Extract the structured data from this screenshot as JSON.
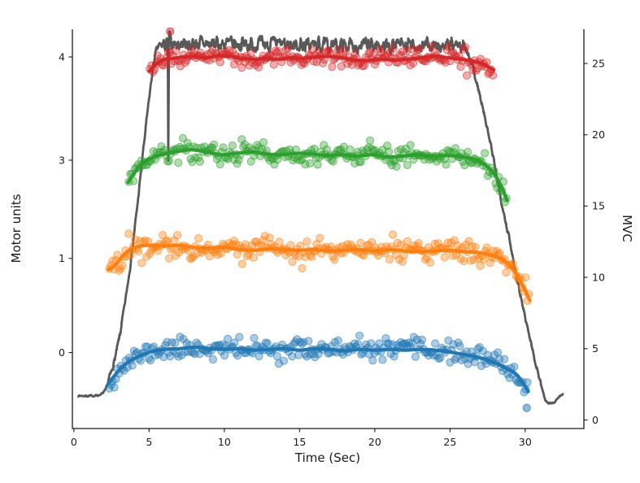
{
  "chart_data": {
    "type": "scatter",
    "title": "",
    "xlabel": "Time (Sec)",
    "ylabel_left": "Motor units",
    "ylabel_right": "MVC",
    "xlim": [
      -0.1,
      33.9
    ],
    "ylim_mvc": [
      -0.6,
      27.4
    ],
    "grid": false,
    "legend": "none",
    "x_ticks": {
      "positions": [
        0,
        5,
        10,
        15,
        20,
        25,
        30
      ],
      "labels": [
        "0",
        "5",
        "10",
        "15",
        "20",
        "25",
        "30"
      ]
    },
    "left_ticks": {
      "positions": [
        4.73,
        11.33,
        18.22,
        25.46
      ],
      "labels": [
        "0",
        "1",
        "3",
        "4"
      ]
    },
    "right_ticks": {
      "positions": [
        0,
        5,
        10,
        15,
        20,
        25
      ],
      "labels": [
        "0",
        "5",
        "10",
        "15",
        "20",
        "25"
      ]
    },
    "mvc_trace": {
      "name": "force-trace",
      "color": "#595959",
      "linewidth": 2.8,
      "sample_step": 0.025,
      "noise": {
        "seed": 7,
        "plateau_t": [
          5.8,
          26.0
        ],
        "plateau_amp": 0.42,
        "slope_amp": 0.18,
        "base_amp": 0.05
      },
      "keypoints": [
        [
          0.3,
          1.7
        ],
        [
          1.0,
          1.68
        ],
        [
          1.6,
          1.72
        ],
        [
          1.9,
          1.85
        ],
        [
          2.1,
          2.1
        ],
        [
          2.25,
          2.6
        ],
        [
          2.5,
          3.4
        ],
        [
          2.8,
          4.6
        ],
        [
          3.1,
          6.2
        ],
        [
          3.4,
          8.2
        ],
        [
          3.7,
          10.5
        ],
        [
          4.0,
          13.0
        ],
        [
          4.3,
          15.8
        ],
        [
          4.6,
          18.8
        ],
        [
          4.9,
          21.6
        ],
        [
          5.1,
          23.4
        ],
        [
          5.3,
          25.0
        ],
        [
          5.5,
          26.0
        ],
        [
          5.7,
          26.3
        ],
        [
          6.24,
          26.3
        ],
        [
          6.28,
          16.8
        ],
        [
          6.32,
          26.9
        ],
        [
          6.5,
          26.4
        ],
        [
          26.0,
          26.2
        ],
        [
          26.4,
          25.2
        ],
        [
          26.8,
          23.6
        ],
        [
          27.1,
          22.2
        ],
        [
          27.4,
          20.8
        ],
        [
          27.7,
          19.3
        ],
        [
          28.0,
          17.6
        ],
        [
          28.4,
          15.5
        ],
        [
          28.8,
          13.4
        ],
        [
          29.2,
          11.3
        ],
        [
          29.6,
          9.2
        ],
        [
          30.0,
          7.2
        ],
        [
          30.4,
          5.3
        ],
        [
          30.8,
          3.5
        ],
        [
          31.1,
          2.3
        ],
        [
          31.35,
          1.35
        ],
        [
          31.6,
          1.15
        ],
        [
          31.9,
          1.2
        ],
        [
          32.2,
          1.55
        ],
        [
          32.5,
          1.8
        ]
      ]
    },
    "series": [
      {
        "name": "motor-unit-0",
        "unit_label": "0",
        "color": "#1f77b4",
        "baseline_mvc": 4.73,
        "linewidth": 4.2,
        "marker_radius": 4.6,
        "marker_alpha": 0.38,
        "scatter": {
          "count": 255,
          "sd": 0.36,
          "seed": 11
        },
        "outliers": [
          [
            30.1,
            0.85
          ]
        ],
        "line": [
          [
            2.3,
            2.55
          ],
          [
            2.7,
            3.1
          ],
          [
            3.1,
            3.6
          ],
          [
            3.6,
            4.05
          ],
          [
            4.2,
            4.4
          ],
          [
            5.0,
            4.75
          ],
          [
            6.0,
            4.95
          ],
          [
            7.0,
            5.0
          ],
          [
            8.0,
            5.1
          ],
          [
            9.0,
            5.0
          ],
          [
            10.0,
            4.95
          ],
          [
            11.0,
            5.0
          ],
          [
            12.0,
            4.9
          ],
          [
            13.0,
            4.95
          ],
          [
            14.0,
            5.0
          ],
          [
            15.0,
            4.9
          ],
          [
            16.0,
            5.0
          ],
          [
            17.0,
            4.95
          ],
          [
            18.0,
            4.85
          ],
          [
            19.0,
            4.95
          ],
          [
            20.0,
            4.9
          ],
          [
            21.0,
            4.95
          ],
          [
            22.0,
            4.9
          ],
          [
            23.0,
            4.95
          ],
          [
            24.0,
            4.9
          ],
          [
            24.8,
            4.8
          ],
          [
            25.6,
            4.65
          ],
          [
            26.4,
            4.5
          ],
          [
            27.2,
            4.3
          ],
          [
            28.0,
            4.0
          ],
          [
            28.8,
            3.6
          ],
          [
            29.5,
            3.1
          ],
          [
            30.2,
            2.0
          ]
        ]
      },
      {
        "name": "motor-unit-1",
        "unit_label": "1",
        "color": "#ff7f0e",
        "baseline_mvc": 11.33,
        "linewidth": 4.2,
        "marker_radius": 4.6,
        "marker_alpha": 0.38,
        "scatter": {
          "count": 260,
          "sd": 0.38,
          "seed": 22
        },
        "outliers": [],
        "line": [
          [
            2.3,
            10.55
          ],
          [
            2.7,
            10.8
          ],
          [
            3.1,
            11.3
          ],
          [
            3.6,
            11.85
          ],
          [
            4.2,
            12.15
          ],
          [
            5.0,
            12.25
          ],
          [
            6.0,
            12.2
          ],
          [
            7.0,
            12.25
          ],
          [
            8.0,
            12.1
          ],
          [
            9.0,
            12.05
          ],
          [
            10.0,
            12.1
          ],
          [
            11.0,
            11.95
          ],
          [
            12.0,
            11.9
          ],
          [
            13.0,
            12.0
          ],
          [
            14.0,
            11.95
          ],
          [
            15.0,
            11.9
          ],
          [
            16.0,
            11.95
          ],
          [
            17.0,
            11.85
          ],
          [
            18.0,
            11.9
          ],
          [
            19.0,
            11.95
          ],
          [
            20.0,
            11.85
          ],
          [
            21.0,
            11.95
          ],
          [
            22.0,
            11.85
          ],
          [
            23.0,
            11.8
          ],
          [
            24.0,
            11.85
          ],
          [
            25.0,
            11.9
          ],
          [
            26.0,
            11.8
          ],
          [
            26.8,
            11.75
          ],
          [
            27.6,
            11.6
          ],
          [
            28.4,
            11.3
          ],
          [
            29.1,
            10.7
          ],
          [
            29.7,
            9.7
          ],
          [
            30.3,
            8.4
          ]
        ]
      },
      {
        "name": "motor-unit-3",
        "unit_label": "3",
        "color": "#2ca02c",
        "baseline_mvc": 18.22,
        "linewidth": 4.2,
        "marker_radius": 4.6,
        "marker_alpha": 0.38,
        "scatter": {
          "count": 245,
          "sd": 0.36,
          "seed": 33
        },
        "outliers": [],
        "line": [
          [
            3.6,
            16.65
          ],
          [
            4.0,
            17.3
          ],
          [
            4.5,
            17.95
          ],
          [
            5.2,
            18.4
          ],
          [
            6.0,
            18.65
          ],
          [
            7.0,
            18.85
          ],
          [
            7.8,
            18.95
          ],
          [
            8.8,
            18.8
          ],
          [
            9.8,
            18.6
          ],
          [
            10.8,
            18.7
          ],
          [
            11.8,
            18.8
          ],
          [
            12.8,
            18.65
          ],
          [
            13.8,
            18.6
          ],
          [
            14.8,
            18.7
          ],
          [
            15.8,
            18.65
          ],
          [
            16.8,
            18.55
          ],
          [
            17.8,
            18.6
          ],
          [
            18.8,
            18.5
          ],
          [
            19.8,
            18.6
          ],
          [
            20.8,
            18.45
          ],
          [
            21.8,
            18.5
          ],
          [
            22.8,
            18.6
          ],
          [
            23.8,
            18.5
          ],
          [
            24.8,
            18.55
          ],
          [
            25.8,
            18.45
          ],
          [
            26.6,
            18.3
          ],
          [
            27.2,
            18.0
          ],
          [
            27.9,
            17.3
          ],
          [
            28.4,
            16.4
          ],
          [
            28.8,
            15.4
          ]
        ]
      },
      {
        "name": "motor-unit-4",
        "unit_label": "4",
        "color": "#d62728",
        "baseline_mvc": 25.46,
        "linewidth": 4.2,
        "marker_radius": 4.6,
        "marker_alpha": 0.38,
        "scatter": {
          "count": 225,
          "sd": 0.34,
          "seed": 44
        },
        "outliers": [
          [
            6.4,
            27.25
          ]
        ],
        "line": [
          [
            5.0,
            24.45
          ],
          [
            5.4,
            24.9
          ],
          [
            5.9,
            25.25
          ],
          [
            6.5,
            25.35
          ],
          [
            7.2,
            25.45
          ],
          [
            8.0,
            25.5
          ],
          [
            8.8,
            25.4
          ],
          [
            9.6,
            25.55
          ],
          [
            10.4,
            25.5
          ],
          [
            11.2,
            25.35
          ],
          [
            12.0,
            25.3
          ],
          [
            12.8,
            25.35
          ],
          [
            13.6,
            25.3
          ],
          [
            14.4,
            25.4
          ],
          [
            15.2,
            25.35
          ],
          [
            16.0,
            25.45
          ],
          [
            16.9,
            25.5
          ],
          [
            17.8,
            25.4
          ],
          [
            18.6,
            25.25
          ],
          [
            19.5,
            25.2
          ],
          [
            20.4,
            25.3
          ],
          [
            21.3,
            25.25
          ],
          [
            22.2,
            25.3
          ],
          [
            23.1,
            25.4
          ],
          [
            24.0,
            25.5
          ],
          [
            24.9,
            25.4
          ],
          [
            25.7,
            25.3
          ],
          [
            26.4,
            25.2
          ],
          [
            27.1,
            25.0
          ],
          [
            27.9,
            24.55
          ]
        ]
      }
    ]
  }
}
